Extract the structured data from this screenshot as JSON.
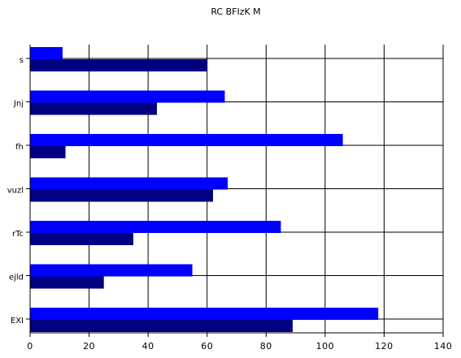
{
  "chart_data": {
    "type": "bar",
    "orientation": "horizontal",
    "title": "RC BFIzK  M",
    "xlabel": "",
    "ylabel": "",
    "categories": [
      "s",
      "Jnj",
      "fh",
      "vuzl",
      "rTc",
      "ejld",
      "EXI"
    ],
    "series": [
      {
        "color": "#0000ff",
        "values": [
          11,
          66,
          106,
          67,
          85,
          55,
          118
        ]
      },
      {
        "color": "#000080",
        "values": [
          60,
          43,
          12,
          62,
          35,
          25,
          89
        ]
      }
    ],
    "xlim": [
      0,
      140
    ],
    "xticks": [
      0,
      20,
      40,
      60,
      80,
      100,
      120,
      140
    ],
    "grid": true,
    "legend": "none"
  }
}
